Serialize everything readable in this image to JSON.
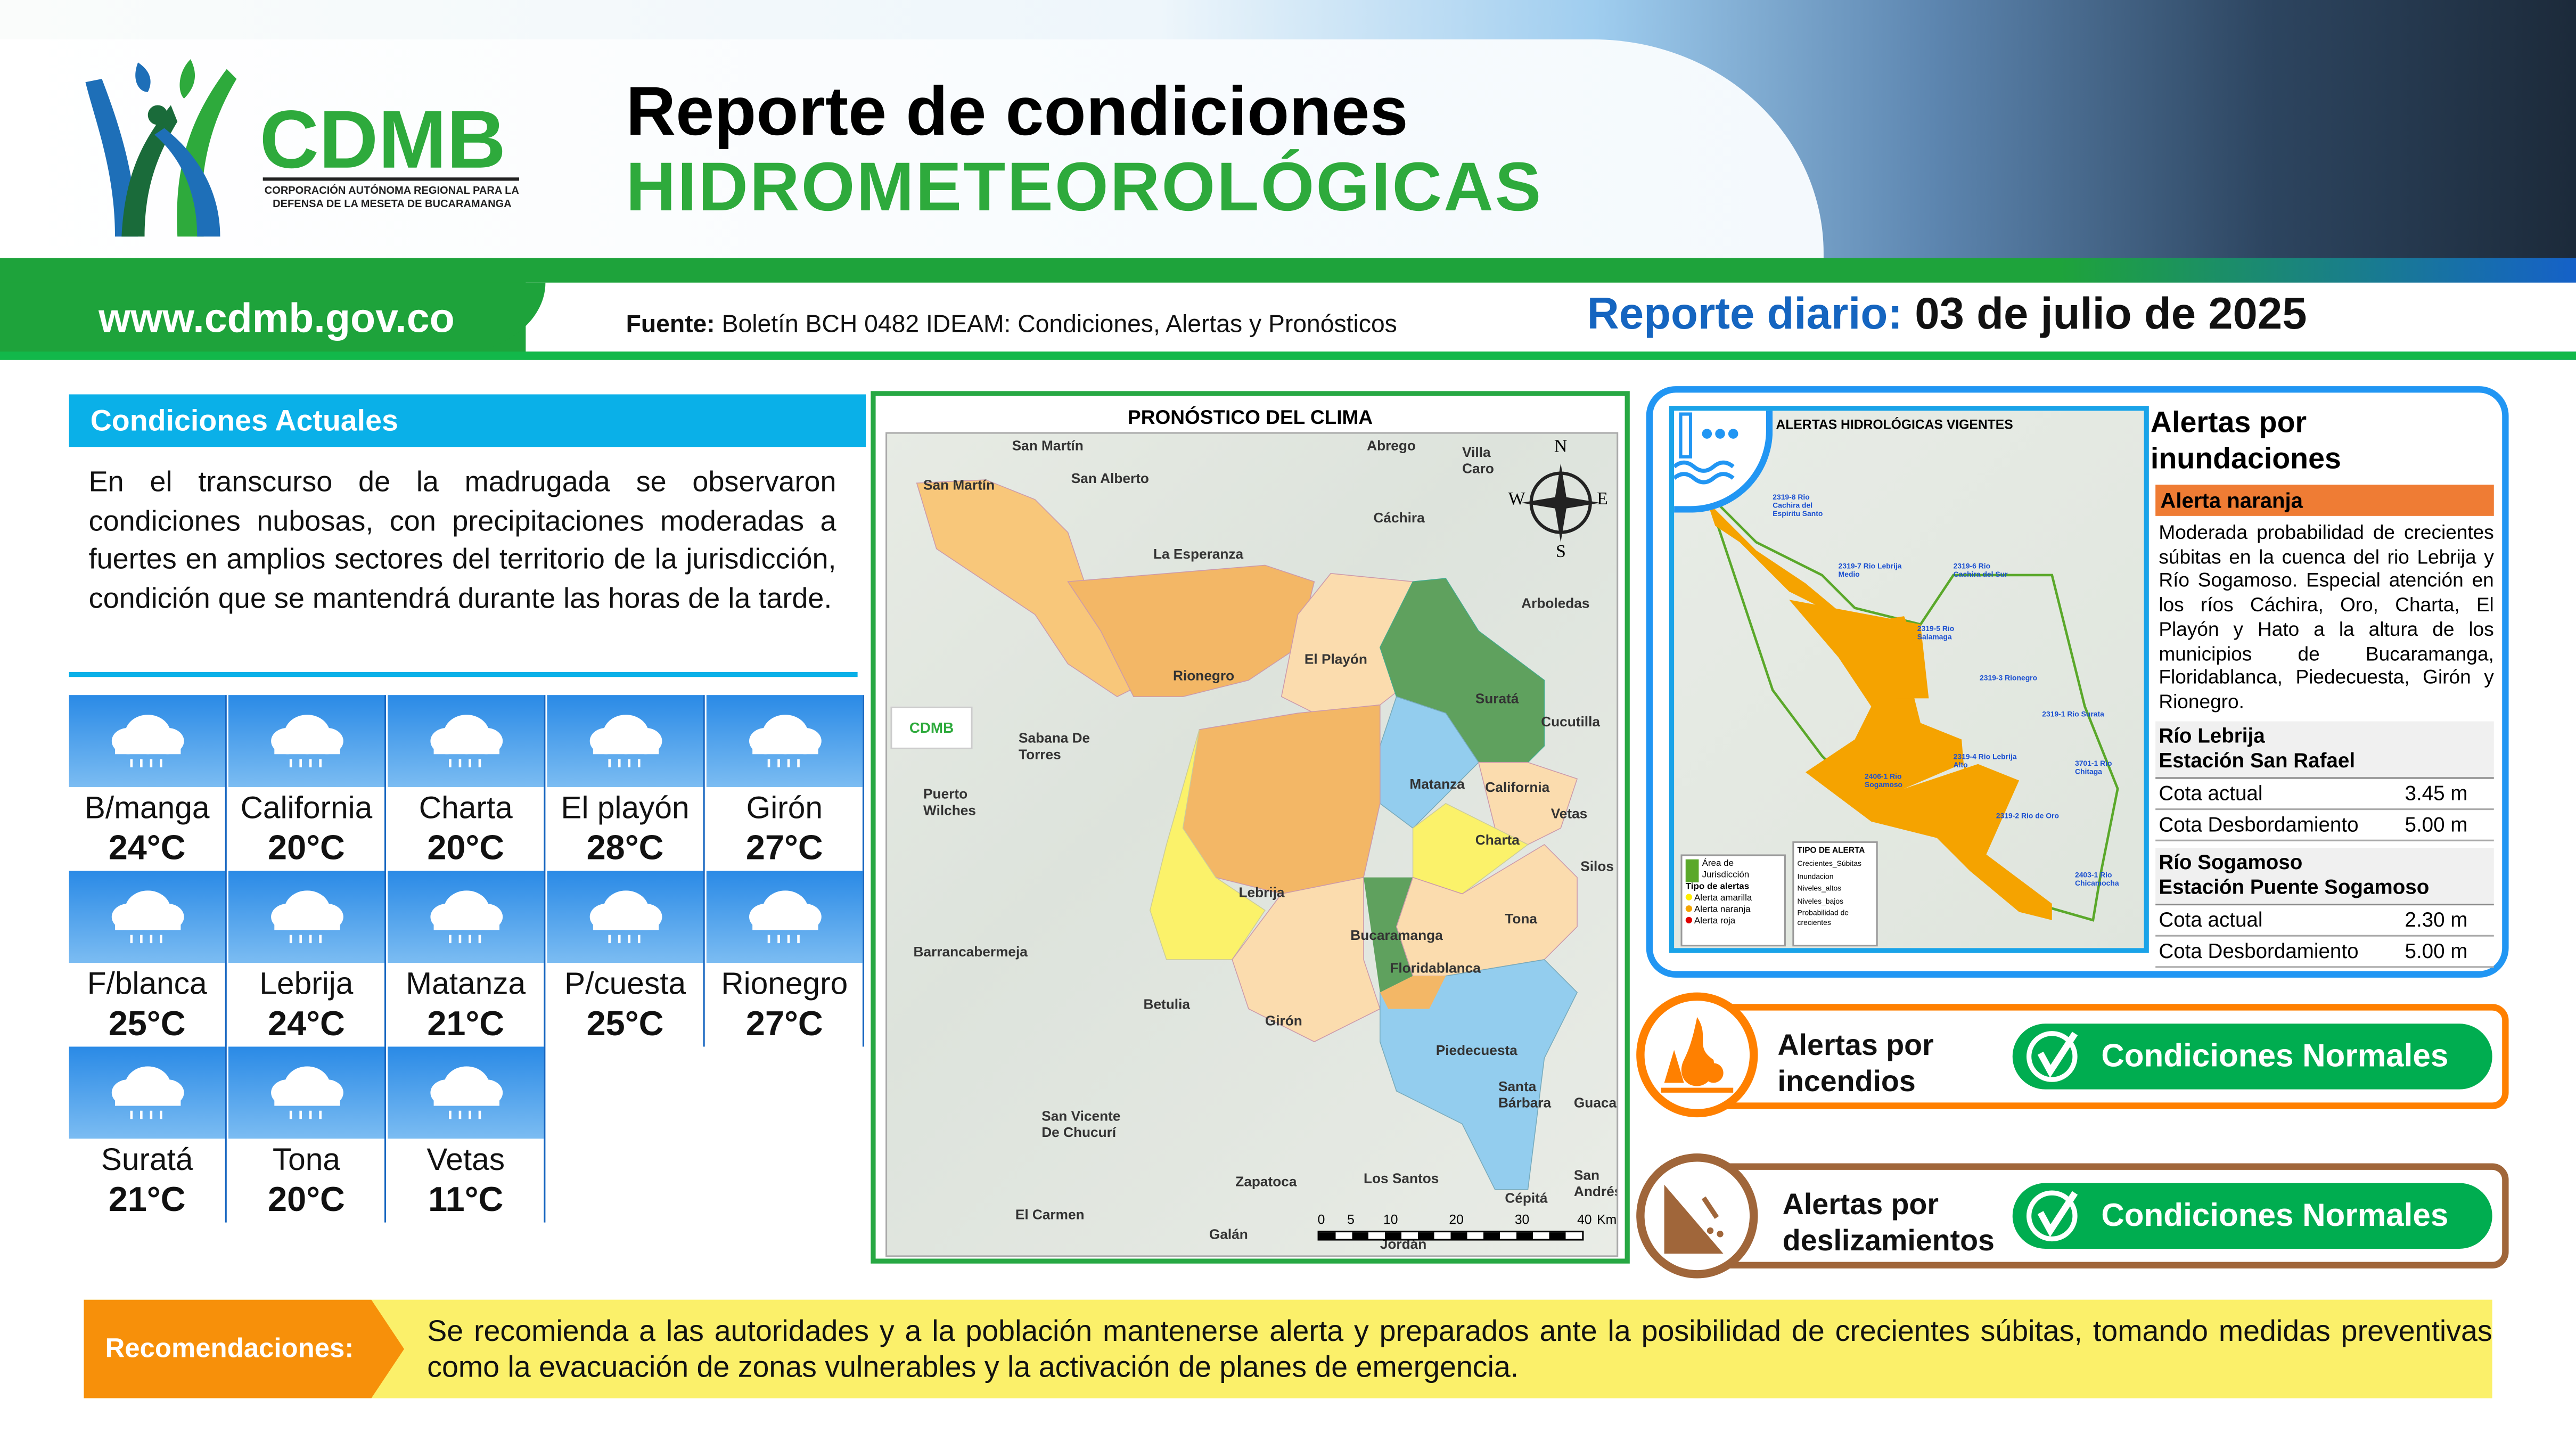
{
  "header": {
    "title_line1": "Reporte de condiciones",
    "title_line2": "HIDROMETEOROLÓGICAS",
    "logo_text": "CDMB",
    "logo_subtitle": "CORPORACIÓN AUTÓNOMA REGIONAL PARA LA DEFENSA DE LA MESETA DE BUCARAMANGA",
    "url": "www.cdmb.gov.co",
    "source_label": "Fuente:",
    "source_text": "Boletín BCH 0482 IDEAM: Condiciones, Alertas y Pronósticos",
    "report_label": "Reporte diario:",
    "report_date": "03 de julio de 2025"
  },
  "conditions": {
    "title": "Condiciones Actuales",
    "text": "En el transcurso de la madrugada se observaron condiciones nubosas, con precipitaciones moderadas a fuertes en amplios sectores del territorio de la jurisdicción, condición que se mantendrá durante las horas de la tarde.",
    "weather_icon": "rain-cloud-icon",
    "stations": [
      {
        "name": "B/manga",
        "temp": "24°C"
      },
      {
        "name": "California",
        "temp": "20°C"
      },
      {
        "name": "Charta",
        "temp": "20°C"
      },
      {
        "name": "El playón",
        "temp": "28°C"
      },
      {
        "name": "Girón",
        "temp": "27°C"
      },
      {
        "name": "F/blanca",
        "temp": "25°C"
      },
      {
        "name": "Lebrija",
        "temp": "24°C"
      },
      {
        "name": "Matanza",
        "temp": "21°C"
      },
      {
        "name": "P/cuesta",
        "temp": "25°C"
      },
      {
        "name": "Rionegro",
        "temp": "27°C"
      },
      {
        "name": "Suratá",
        "temp": "21°C"
      },
      {
        "name": "Tona",
        "temp": "20°C"
      },
      {
        "name": "Vetas",
        "temp": "11°C"
      }
    ]
  },
  "forecast_map": {
    "title": "PRONÓSTICO DEL CLIMA",
    "places": [
      "San Martín",
      "San Martín",
      "Abrego",
      "Villa Caro",
      "San Alberto",
      "Cáchira",
      "La Esperanza",
      "Arboledas",
      "Rionegro",
      "El Playón",
      "Suratá",
      "Cucutilla",
      "Sabana De Torres",
      "Matanza",
      "California",
      "Vetas",
      "Puerto Wilches",
      "Charta",
      "Silos",
      "Lebrija",
      "Tona",
      "Bucaramanga",
      "Barrancabermeja",
      "Floridablanca",
      "Betulia",
      "Girón",
      "Piedecuesta",
      "San Vicente De Chucurí",
      "Santa Bárbara",
      "Guaca",
      "Zapatoca",
      "Los Santos",
      "El Carmen",
      "Galán",
      "Jordán",
      "Cépitá",
      "San Andrés"
    ],
    "scale_labels": [
      "0",
      "5",
      "10",
      "20",
      "30",
      "40",
      "Km"
    ],
    "compass": [
      "N",
      "S",
      "E",
      "W"
    ],
    "colors": {
      "orange_light": "#f8c77a",
      "orange": "#f3b766",
      "yellow": "#fbf26a",
      "green": "#5fa15e",
      "light_blue": "#93cdee",
      "peach": "#fbdcae"
    }
  },
  "flood_alerts": {
    "map_title": "ALERTAS HIDROLÓGICAS VIGENTES",
    "title": "Alertas por inundaciones",
    "level": "Alerta naranja",
    "level_color": "#ef7c34",
    "description": "Moderada probabilidad de crecientes súbitas en la cuenca del rio Lebrija y Río Sogamoso. Especial atención en los ríos Cáchira, Oro, Charta, El Playón y Hato a la altura de los municipios de Bucaramanga, Floridablanca, Piedecuesta, Girón y Rionegro.",
    "stations": [
      {
        "river": "Río Lebrija",
        "station": "Estación San Rafael",
        "rows": [
          {
            "label": "Cota actual",
            "value": "3.45 m"
          },
          {
            "label": "Cota Desbordamiento",
            "value": "5.00 m"
          }
        ]
      },
      {
        "river": "Río Sogamoso",
        "station": "Estación Puente Sogamoso",
        "rows": [
          {
            "label": "Cota actual",
            "value": "2.30 m"
          },
          {
            "label": "Cota Desbordamiento",
            "value": "5.00 m"
          }
        ]
      }
    ],
    "map_legend": {
      "jurisdiction": "Área de Jurisdicción",
      "types_title": "Tipo de alertas",
      "types": [
        "Alerta amarilla",
        "Alerta naranja",
        "Alerta roja"
      ],
      "alert_title": "TIPO DE ALERTA",
      "alert_types": [
        "Crecientes_Súbitas",
        "Inundacion",
        "Niveles_altos",
        "Niveles_bajos",
        "Probabilidad de crecientes"
      ]
    },
    "map_stations": [
      "2319-8 Rio Cachira del Espíritu Santo",
      "2319-7 Rio Lebrija Medio",
      "2319-6 Rio Cachira del Sur",
      "2319-5 Rio Salamaga",
      "2319-3 Rionegro",
      "2319-1 Rio Surata",
      "2319-4 Rio Lebrija Alto",
      "2406-1 Rio Sogamoso",
      "3701-1 Rio Chitaga",
      "2319-2 Rio de Oro",
      "2403-1 Rio Chicamocha"
    ]
  },
  "other_alerts": [
    {
      "title_line1": "Alertas por",
      "title_line2": "incendios",
      "status": "Condiciones Normales",
      "color": "#ff8000",
      "icon": "forest-fire-icon"
    },
    {
      "title_line1": "Alertas por",
      "title_line2": "deslizamientos",
      "status": "Condiciones Normales",
      "color": "#a0663a",
      "icon": "landslide-icon"
    }
  ],
  "recommendations": {
    "label": "Recomendaciones:",
    "text": "Se recomienda a las autoridades y a la población mantenerse alerta y preparados ante la posibilidad de crecientes súbitas, tomando medidas preventivas como la evacuación de zonas vulnerables y la activación de planes de emergencia."
  }
}
